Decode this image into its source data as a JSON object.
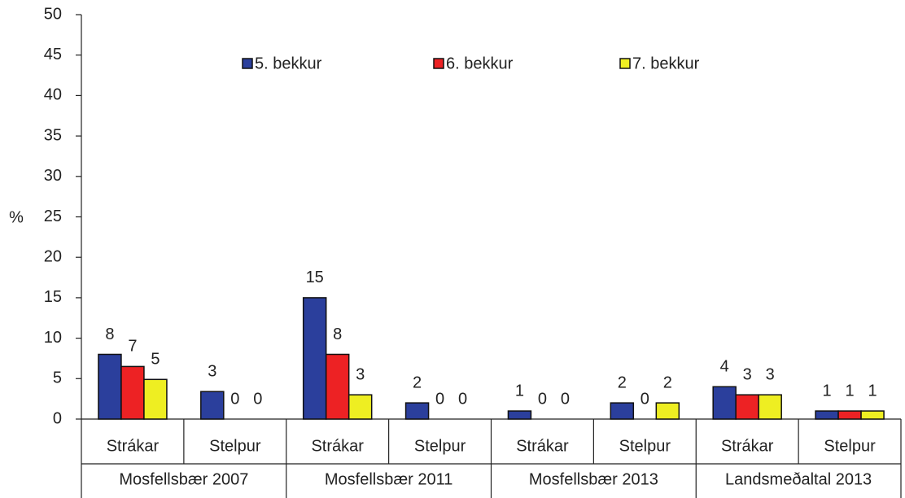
{
  "chart_data": {
    "type": "bar",
    "y_label": "%",
    "categories": [
      "Strákar",
      "Stelpur",
      "Strákar",
      "Stelpur",
      "Strákar",
      "Stelpur",
      "Strákar",
      "Stelpur"
    ],
    "groups": [
      "Mosfellsbær 2007",
      "Mosfellsbær 2011",
      "Mosfellsbær 2013",
      "Landsmeðaltal 2013"
    ],
    "series": [
      {
        "name": "5. bekkur",
        "color": "#2b3f9c",
        "values": [
          8,
          3.4,
          15,
          2,
          1,
          2,
          4,
          1
        ],
        "value_labels": [
          "8",
          "3",
          "15",
          "2",
          "1",
          "2",
          "4",
          "1"
        ]
      },
      {
        "name": "6. bekkur",
        "color": "#ed2224",
        "values": [
          6.5,
          0,
          8,
          0,
          0,
          0,
          3,
          1
        ],
        "value_labels": [
          "7",
          "0",
          "8",
          "0",
          "0",
          "0",
          "3",
          "1"
        ]
      },
      {
        "name": "7. bekkur",
        "color": "#eeee22",
        "values": [
          4.9,
          0,
          3,
          0,
          0,
          2,
          3,
          1
        ],
        "value_labels": [
          "5",
          "0",
          "3",
          "0",
          "0",
          "2",
          "3",
          "1"
        ]
      }
    ],
    "ylim": [
      0,
      50
    ],
    "yticks": [
      0,
      5,
      10,
      15,
      20,
      25,
      30,
      35,
      40,
      45,
      50
    ]
  }
}
